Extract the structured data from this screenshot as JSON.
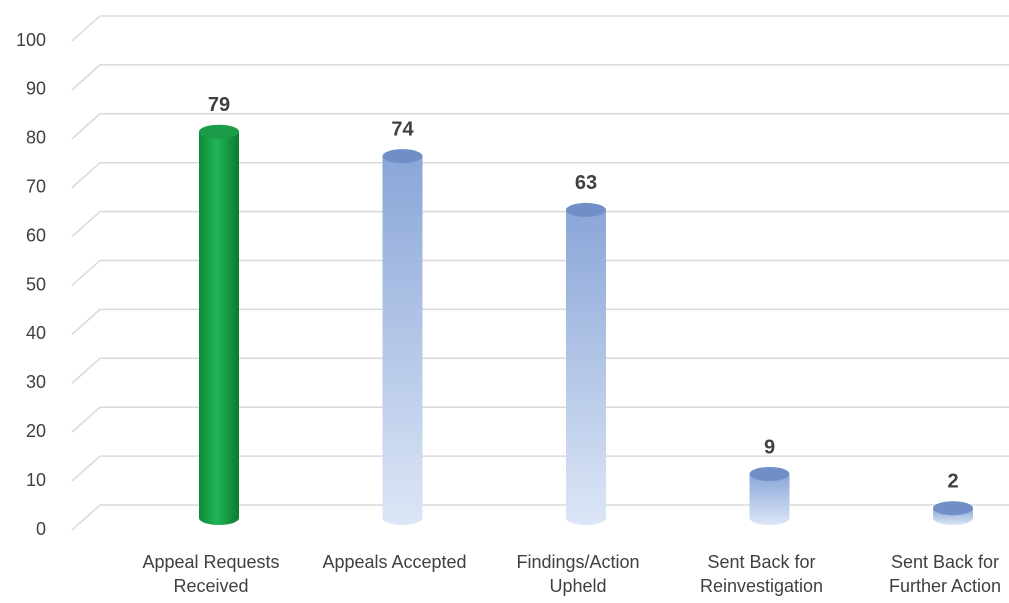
{
  "chart_data": {
    "type": "bar",
    "categories": [
      "Appeal Requests Received",
      "Appeals Accepted",
      "Findings/Action Upheld",
      "Sent Back for Reinvestigation",
      "Sent Back for Further Action"
    ],
    "values": [
      79,
      74,
      63,
      9,
      2
    ],
    "colors": [
      "#1aa04a",
      "#8eaadb",
      "#8eaadb",
      "#8eaadb",
      "#8eaadb"
    ],
    "ylim": [
      0,
      100
    ],
    "yticks": [
      0,
      10,
      20,
      30,
      40,
      50,
      60,
      70,
      80,
      90,
      100
    ],
    "grid": true
  }
}
